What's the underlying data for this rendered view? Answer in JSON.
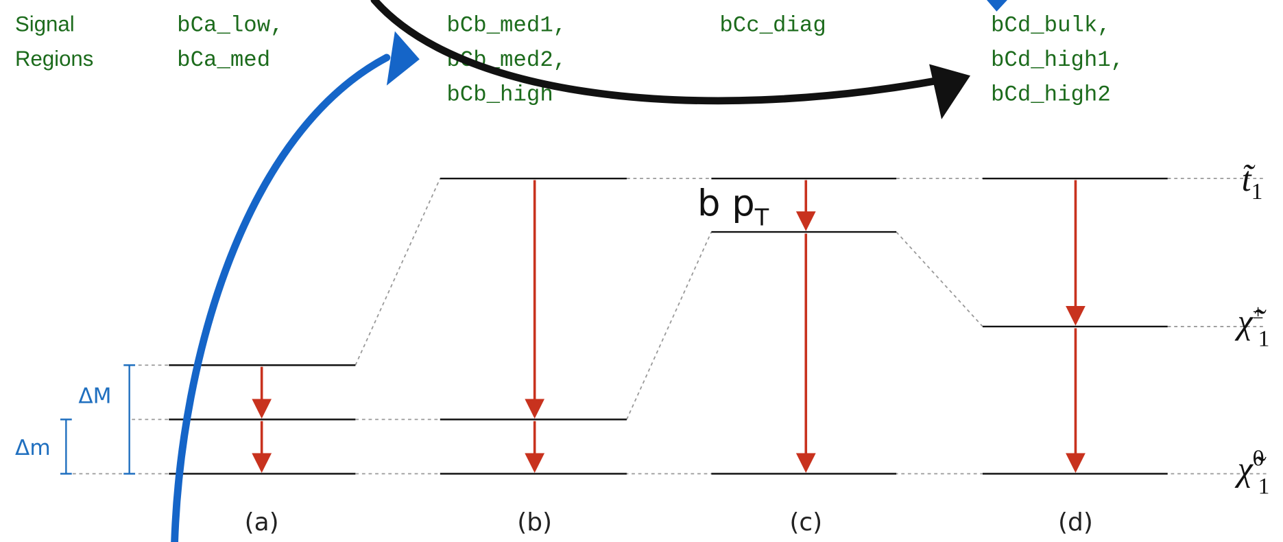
{
  "signal_regions_label": [
    "Signal",
    "Regions"
  ],
  "regions": [
    [
      "bCa_low,",
      "bCa_med"
    ],
    [
      "bCb_med1,",
      "bCb_med2,",
      "bCb_high"
    ],
    [
      "bCc_diag"
    ],
    [
      "bCd_bulk,",
      "bCd_high1,",
      "bCd_high2"
    ]
  ],
  "particles": [
    {
      "symbol": "t̃",
      "sub": "1"
    },
    {
      "symbol": "χ̃",
      "sup": "±",
      "sub": "1"
    },
    {
      "symbol": "χ̃",
      "sup": "0",
      "sub": "1"
    }
  ],
  "annotation": {
    "text": "b p",
    "sub": "T"
  },
  "delta_M": "ΔM",
  "delta_m": "Δm",
  "panels": [
    "(a)",
    "(b)",
    "(c)",
    "(d)"
  ]
}
